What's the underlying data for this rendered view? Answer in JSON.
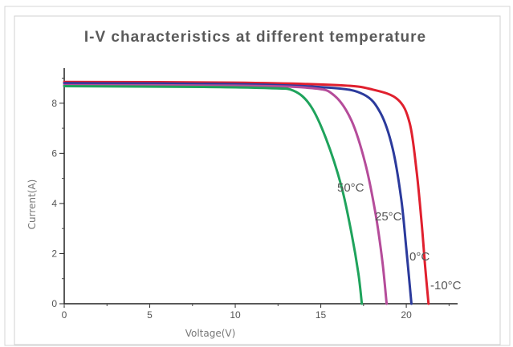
{
  "chart_data": {
    "type": "line",
    "title": "I-V characteristics at different temperature",
    "xlabel": "Voltage(V)",
    "ylabel": "Current(A)",
    "xlim": [
      0,
      23
    ],
    "ylim": [
      0,
      9.4
    ],
    "xticks": [
      0,
      5,
      10,
      15,
      20
    ],
    "yticks": [
      0,
      2,
      4,
      6,
      8
    ],
    "grid": false,
    "series": [
      {
        "name": "-10°C",
        "color": "#e0202e",
        "points": [
          [
            0,
            8.85
          ],
          [
            10,
            8.82
          ],
          [
            16,
            8.72
          ],
          [
            18,
            8.55
          ],
          [
            19.5,
            8.15
          ],
          [
            20.2,
            7.2
          ],
          [
            20.6,
            5.3
          ],
          [
            20.9,
            3.2
          ],
          [
            21.1,
            1.5
          ],
          [
            21.3,
            0
          ]
        ]
      },
      {
        "name": "0°C",
        "color": "#2b3a9c",
        "points": [
          [
            0,
            8.8
          ],
          [
            10,
            8.76
          ],
          [
            15.5,
            8.62
          ],
          [
            17.5,
            8.35
          ],
          [
            18.5,
            7.6
          ],
          [
            19.2,
            6.2
          ],
          [
            19.7,
            4.2
          ],
          [
            20.0,
            2.2
          ],
          [
            20.3,
            0
          ]
        ]
      },
      {
        "name": "25°C",
        "color": "#b54c9a",
        "points": [
          [
            0,
            8.72
          ],
          [
            10,
            8.7
          ],
          [
            14.5,
            8.6
          ],
          [
            15.8,
            8.3
          ],
          [
            16.8,
            7.3
          ],
          [
            17.6,
            5.6
          ],
          [
            18.2,
            3.6
          ],
          [
            18.6,
            1.7
          ],
          [
            18.85,
            0
          ]
        ]
      },
      {
        "name": "50°C",
        "color": "#1fa35c",
        "points": [
          [
            0,
            8.68
          ],
          [
            8,
            8.65
          ],
          [
            12,
            8.6
          ],
          [
            13.4,
            8.5
          ],
          [
            14.4,
            7.9
          ],
          [
            15.3,
            6.6
          ],
          [
            16.2,
            4.7
          ],
          [
            16.8,
            2.8
          ],
          [
            17.2,
            1.2
          ],
          [
            17.4,
            0
          ]
        ]
      }
    ],
    "annotations": [
      "50°C",
      "25°C",
      "0°C",
      "-10°C"
    ]
  }
}
